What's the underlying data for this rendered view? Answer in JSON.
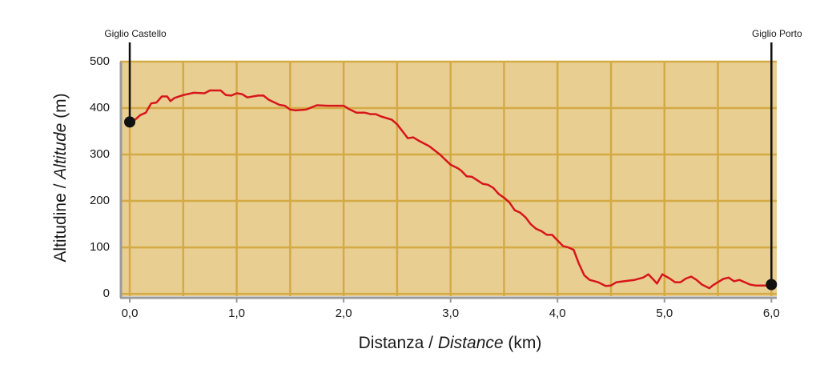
{
  "chart_data": {
    "type": "line",
    "xlabel": [
      "Distanza / ",
      "Distance",
      " (km)"
    ],
    "ylabel": [
      "Altitudine / ",
      "Altitude",
      " (m)"
    ],
    "x": [
      0,
      0.05,
      0.1,
      0.15,
      0.2,
      0.25,
      0.3,
      0.35,
      0.38,
      0.42,
      0.5,
      0.6,
      0.7,
      0.75,
      0.85,
      0.9,
      0.95,
      1.0,
      1.05,
      1.1,
      1.2,
      1.25,
      1.3,
      1.4,
      1.45,
      1.5,
      1.55,
      1.65,
      1.75,
      1.85,
      2.0,
      2.05,
      2.12,
      2.2,
      2.25,
      2.3,
      2.35,
      2.45,
      2.5,
      2.55,
      2.6,
      2.65,
      2.7,
      2.8,
      2.9,
      3.0,
      3.07,
      3.1,
      3.15,
      3.2,
      3.3,
      3.35,
      3.4,
      3.45,
      3.5,
      3.55,
      3.6,
      3.65,
      3.7,
      3.75,
      3.8,
      3.85,
      3.9,
      3.95,
      4.0,
      4.05,
      4.1,
      4.15,
      4.2,
      4.25,
      4.3,
      4.38,
      4.45,
      4.5,
      4.55,
      4.65,
      4.72,
      4.8,
      4.85,
      4.9,
      4.93,
      4.98,
      5.05,
      5.1,
      5.15,
      5.2,
      5.25,
      5.3,
      5.35,
      5.42,
      5.45,
      5.5,
      5.55,
      5.6,
      5.65,
      5.7,
      5.8,
      5.85,
      5.95,
      6.0
    ],
    "values": [
      370,
      375,
      385,
      390,
      410,
      412,
      425,
      425,
      415,
      422,
      428,
      433,
      432,
      438,
      438,
      428,
      427,
      432,
      430,
      423,
      427,
      427,
      418,
      407,
      405,
      397,
      395,
      397,
      406,
      405,
      405,
      398,
      390,
      390,
      387,
      387,
      382,
      375,
      365,
      350,
      335,
      337,
      330,
      318,
      300,
      278,
      270,
      265,
      253,
      252,
      237,
      235,
      228,
      215,
      207,
      197,
      180,
      175,
      165,
      150,
      140,
      135,
      127,
      127,
      115,
      103,
      100,
      95,
      65,
      40,
      30,
      25,
      17,
      18,
      25,
      28,
      30,
      35,
      42,
      30,
      22,
      42,
      33,
      25,
      25,
      33,
      37,
      30,
      20,
      12,
      18,
      25,
      32,
      35,
      27,
      30,
      20,
      18,
      18,
      20
    ],
    "color": "#d7161b",
    "xlim": [
      -0.09,
      6.05
    ],
    "ylim": [
      -5,
      500
    ],
    "xticks": [
      {
        "value": 0,
        "label": "0,0"
      },
      {
        "value": 1,
        "label": "1,0"
      },
      {
        "value": 2,
        "label": "2,0"
      },
      {
        "value": 3,
        "label": "3,0"
      },
      {
        "value": 4,
        "label": "4,0"
      },
      {
        "value": 5,
        "label": "5,0"
      },
      {
        "value": 6,
        "label": "6,0"
      }
    ],
    "x_minor_ticks": [
      0.5,
      1.5,
      2.5,
      3.5,
      4.5,
      5.5
    ],
    "yticks": [
      0,
      100,
      200,
      300,
      400,
      500
    ],
    "grid": true,
    "plot_background": "#e9ce92",
    "grid_color": "#d4aa45",
    "annotations": [
      {
        "text": "Giglio Castello",
        "x": 0,
        "y": 370
      },
      {
        "text": "Giglio Porto",
        "x": 6.0,
        "y": 20
      }
    ]
  }
}
